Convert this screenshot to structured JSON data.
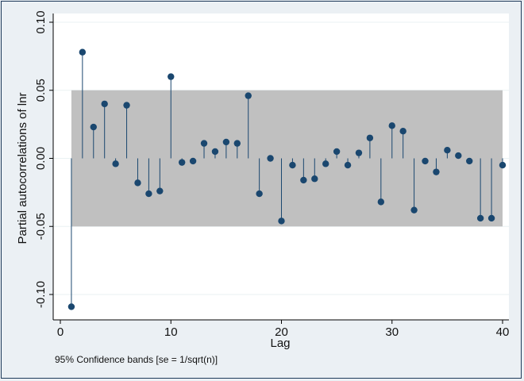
{
  "chart_data": {
    "type": "scatter",
    "subtype": "spike-plot",
    "title": "",
    "xlabel": "Lag",
    "ylabel": "Partial autocorrelations of lnr",
    "xlim": [
      0,
      40
    ],
    "ylim": [
      -0.11,
      0.105
    ],
    "xticks": [
      0,
      10,
      20,
      30,
      40
    ],
    "yticks": [
      -0.1,
      -0.05,
      0.0,
      0.05,
      0.1
    ],
    "xtick_labels": [
      "0",
      "10",
      "20",
      "30",
      "40"
    ],
    "ytick_labels": [
      "-0.10",
      "-0.05",
      "0.00",
      "0.05",
      "0.10"
    ],
    "confidence_band": [
      -0.05,
      0.05
    ],
    "note": "95% Confidence bands [se = 1/sqrt(n)]",
    "x": [
      1,
      2,
      3,
      4,
      5,
      6,
      7,
      8,
      9,
      10,
      11,
      12,
      13,
      14,
      15,
      16,
      17,
      18,
      19,
      20,
      21,
      22,
      23,
      24,
      25,
      26,
      27,
      28,
      29,
      30,
      31,
      32,
      33,
      34,
      35,
      36,
      37,
      38,
      39,
      40
    ],
    "values": [
      -0.109,
      0.078,
      0.023,
      0.04,
      -0.004,
      0.039,
      -0.018,
      -0.026,
      -0.024,
      0.06,
      -0.003,
      -0.002,
      0.011,
      0.005,
      0.012,
      0.011,
      0.046,
      -0.026,
      0.0,
      -0.046,
      -0.005,
      -0.016,
      -0.015,
      -0.004,
      0.005,
      -0.005,
      0.004,
      0.015,
      -0.032,
      0.024,
      0.02,
      -0.038,
      -0.002,
      -0.01,
      0.006,
      0.002,
      -0.002,
      -0.044,
      -0.044,
      -0.005
    ],
    "colors": {
      "background": "#ebf0f4",
      "plot": "#ffffff",
      "band": "#c0c0c0",
      "marker": "#1a476f",
      "grid": "#eaf2f3"
    }
  }
}
